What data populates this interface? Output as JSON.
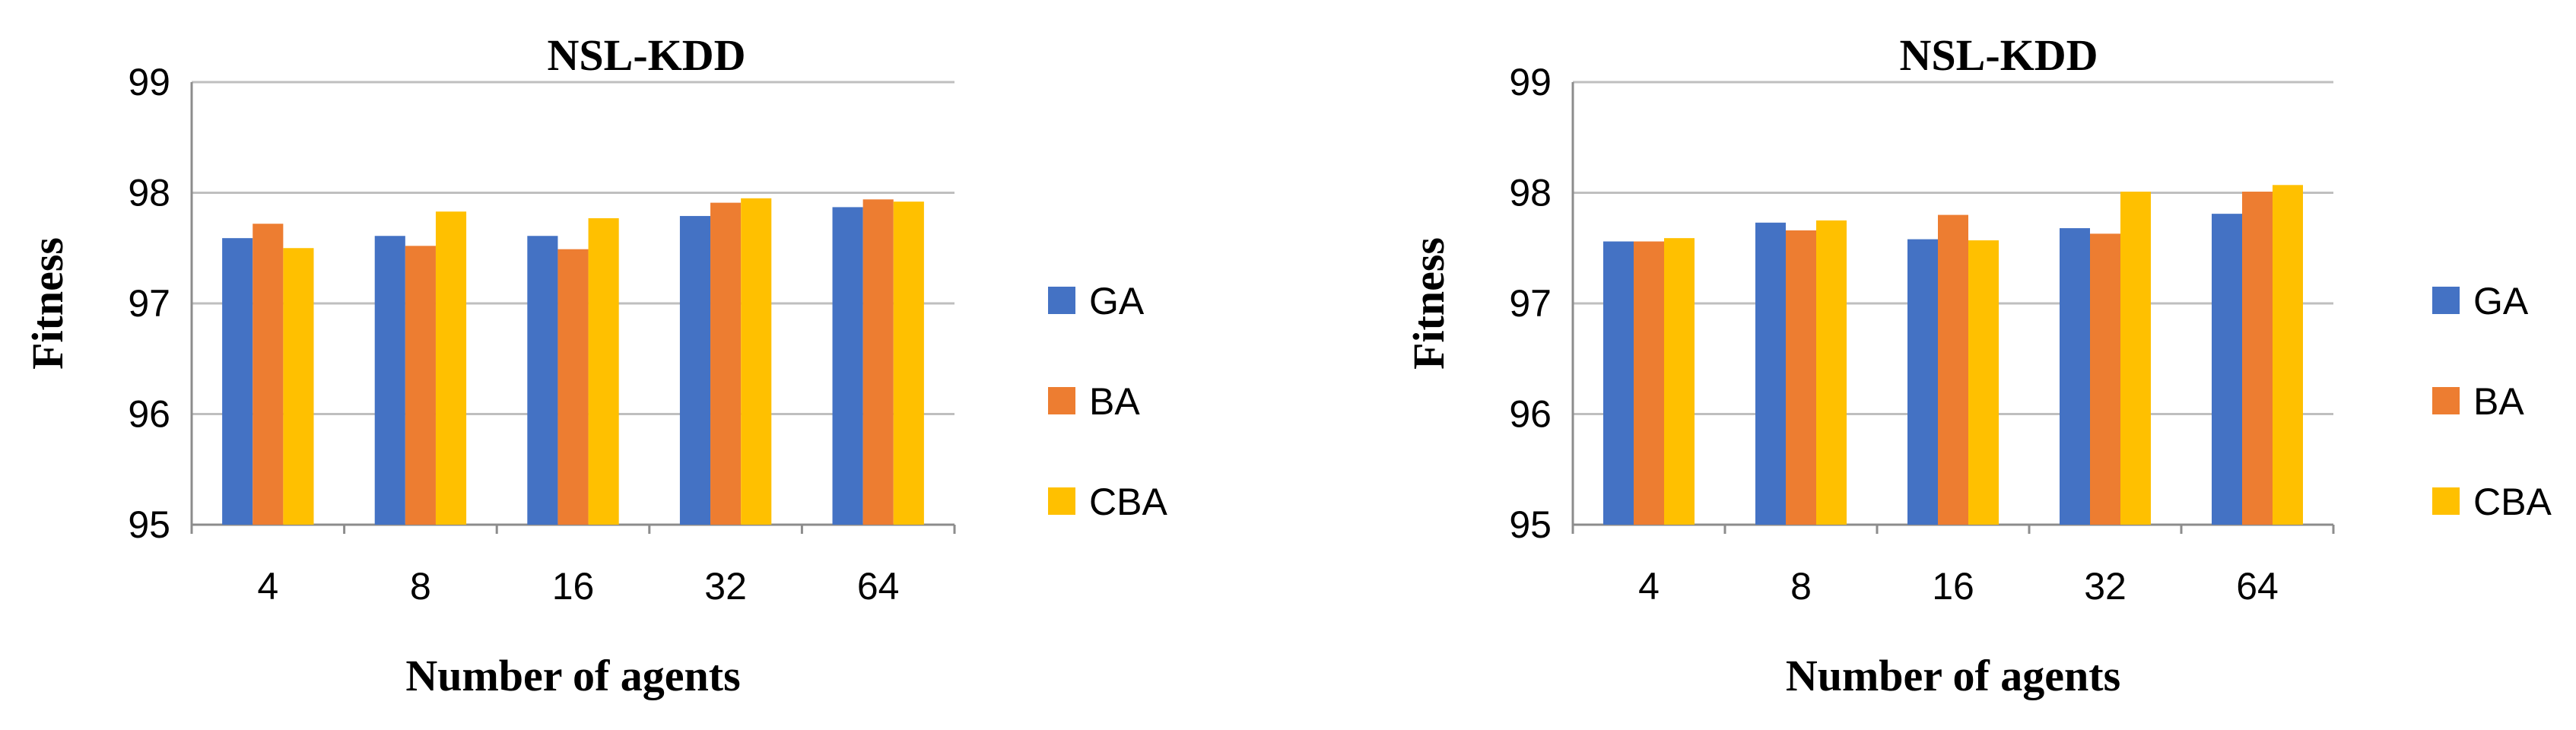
{
  "chart_data": [
    {
      "type": "bar",
      "title": "NSL-KDD",
      "xlabel": "Number of agents",
      "ylabel": "Fitness",
      "ylim": [
        95,
        99
      ],
      "yticks": [
        95,
        96,
        97,
        98,
        99
      ],
      "grid": true,
      "legend_position": "right",
      "categories": [
        "4",
        "8",
        "16",
        "32",
        "64"
      ],
      "series": [
        {
          "name": "GA",
          "color": "#4472C4",
          "values": [
            97.59,
            97.61,
            97.61,
            97.79,
            97.87
          ]
        },
        {
          "name": "BA",
          "color": "#ED7D31",
          "values": [
            97.72,
            97.52,
            97.49,
            97.91,
            97.94
          ]
        },
        {
          "name": "CBA",
          "color": "#FFC000",
          "values": [
            97.5,
            97.83,
            97.77,
            97.95,
            97.92
          ]
        }
      ]
    },
    {
      "type": "bar",
      "title": "NSL-KDD",
      "xlabel": "Number of agents",
      "ylabel": "Fitness",
      "ylim": [
        95,
        99
      ],
      "yticks": [
        95,
        96,
        97,
        98,
        99
      ],
      "grid": true,
      "legend_position": "right",
      "categories": [
        "4",
        "8",
        "16",
        "32",
        "64"
      ],
      "series": [
        {
          "name": "GA",
          "color": "#4472C4",
          "values": [
            97.56,
            97.73,
            97.58,
            97.68,
            97.81
          ]
        },
        {
          "name": "BA",
          "color": "#ED7D31",
          "values": [
            97.56,
            97.66,
            97.8,
            97.63,
            98.01
          ]
        },
        {
          "name": "CBA",
          "color": "#FFC000",
          "values": [
            97.59,
            97.75,
            97.57,
            98.01,
            98.07
          ]
        }
      ]
    }
  ]
}
